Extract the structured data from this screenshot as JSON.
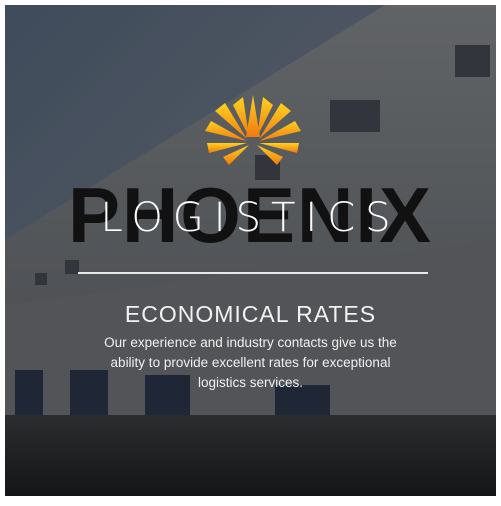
{
  "brand": {
    "name": "PHOENIX",
    "subtitle": "LOGISTICS"
  },
  "feature": {
    "heading": "ECONOMICAL RATES",
    "body_lines": [
      "Our experience and industry contacts give us the",
      "ability to provide excellent rates for exceptional",
      "logistics services."
    ]
  }
}
